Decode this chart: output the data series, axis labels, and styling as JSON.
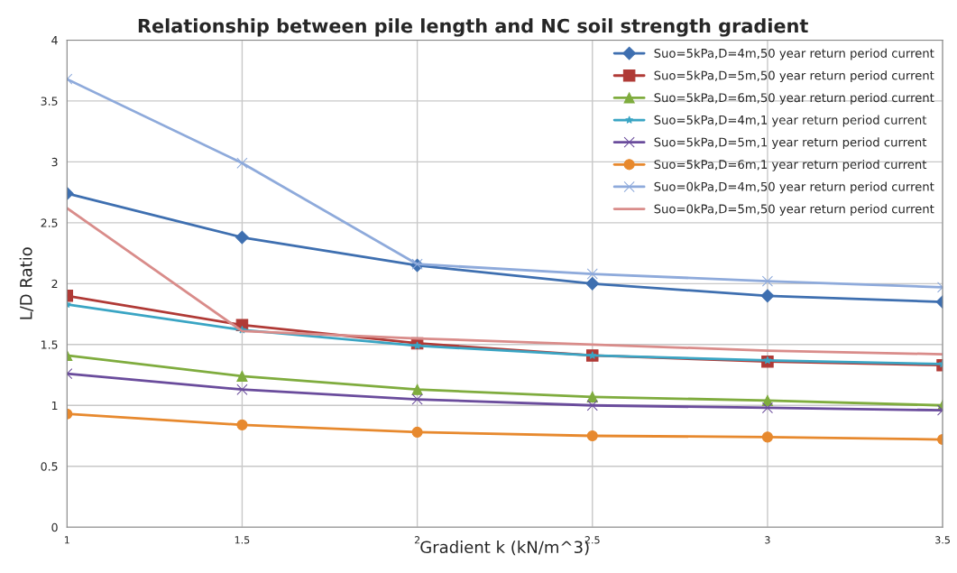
{
  "chart_data": {
    "type": "line",
    "title": "Relationship between pile length and NC soil strength gradient",
    "xlabel": "Gradient k (kN/m^3)",
    "ylabel": "L/D Ratio",
    "x": [
      1,
      1.5,
      2,
      2.5,
      3,
      3.5
    ],
    "xlim": [
      1,
      3.5
    ],
    "xticks": [
      1,
      1.5,
      2,
      2.5,
      3,
      3.5
    ],
    "ylim": [
      0,
      4
    ],
    "yticks": [
      0,
      0.5,
      1,
      1.5,
      2,
      2.5,
      3,
      3.5,
      4
    ],
    "grid": true,
    "legend": "top right",
    "series": [
      {
        "name": "Suo=5kPa,D=4m,50 year return period current",
        "color": "#3e6fb0",
        "marker": "diamond",
        "values": [
          2.74,
          2.38,
          2.15,
          2.0,
          1.9,
          1.85
        ]
      },
      {
        "name": "Suo=5kPa,D=5m,50 year return period current",
        "color": "#b03a36",
        "marker": "square",
        "values": [
          1.9,
          1.66,
          1.51,
          1.41,
          1.36,
          1.33
        ]
      },
      {
        "name": "Suo=5kPa,D=6m,50 year return period current",
        "color": "#7fac3e",
        "marker": "triangle",
        "values": [
          1.41,
          1.24,
          1.13,
          1.07,
          1.04,
          1.0
        ]
      },
      {
        "name": "Suo=5kPa,D=4m,1 year return period current",
        "color": "#3aa5c4",
        "marker": "star",
        "values": [
          1.83,
          1.62,
          1.49,
          1.41,
          1.37,
          1.34
        ]
      },
      {
        "name": "Suo=5kPa,D=5m,1 year return period current",
        "color": "#6a4c9c",
        "marker": "cross",
        "values": [
          1.26,
          1.13,
          1.05,
          1.0,
          0.98,
          0.96
        ]
      },
      {
        "name": "Suo=5kPa,D=6m,1 year return period current",
        "color": "#e7892e",
        "marker": "circle",
        "values": [
          0.93,
          0.84,
          0.78,
          0.75,
          0.74,
          0.72
        ]
      },
      {
        "name": "Suo=0kPa,D=4m,50 year return period current",
        "color": "#8eaadb",
        "marker": "cross",
        "values": [
          3.68,
          2.99,
          2.16,
          2.08,
          2.02,
          1.97
        ]
      },
      {
        "name": "Suo=0kPa,D=5m,50 year return period current",
        "color": "#d98c8a",
        "marker": "none",
        "values": [
          2.62,
          1.61,
          1.55,
          1.5,
          1.45,
          1.42
        ]
      }
    ]
  }
}
